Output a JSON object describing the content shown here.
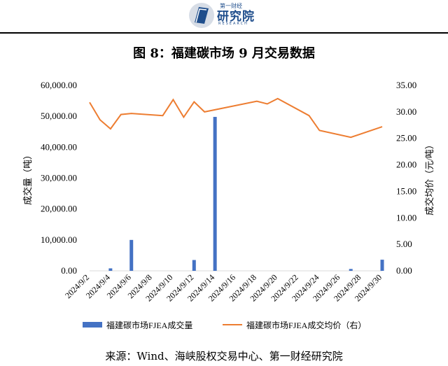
{
  "header": {
    "logo_small": "第一财经",
    "logo_cn": "研究院",
    "logo_en": "RESEARCH"
  },
  "title": "图 8：福建碳市场 9 月交易数据",
  "source": "来源：Wind、海峡股权交易中心、第一财经研究院",
  "colors": {
    "bar": "#4472c4",
    "line": "#ed7d31",
    "logo": "#1f4e8c"
  },
  "chart_data": {
    "type": "bar",
    "title": "",
    "x_tick_labels": [
      "2024/9/2",
      "2024/9/4",
      "2024/9/6",
      "2024/9/8",
      "2024/9/10",
      "2024/9/12",
      "2024/9/14",
      "2024/9/16",
      "2024/9/18",
      "2024/9/20",
      "2024/9/22",
      "2024/9/24",
      "2024/9/26",
      "2024/9/28",
      "2024/9/30"
    ],
    "x_start": "2024/9/2",
    "x_end": "2024/9/30",
    "y_left": {
      "label": "成交量（吨）",
      "lim": [
        0,
        60000
      ],
      "ticks": [
        "0.00",
        "10,000.00",
        "20,000.00",
        "30,000.00",
        "40,000.00",
        "50,000.00",
        "60,000.00"
      ]
    },
    "y_right": {
      "label": "成交均价（元/吨）",
      "lim": [
        0,
        35
      ],
      "ticks": [
        "0.00",
        "5.00",
        "10.00",
        "15.00",
        "20.00",
        "25.00",
        "30.00",
        "35.00"
      ]
    },
    "legend_position": "bottom",
    "series": [
      {
        "name": "福建碳市场FJEA成交量",
        "type": "bar",
        "axis": "left",
        "points": [
          {
            "date": "2024/9/4",
            "value": 800
          },
          {
            "date": "2024/9/6",
            "value": 10000
          },
          {
            "date": "2024/9/12",
            "value": 3500
          },
          {
            "date": "2024/9/14",
            "value": 49800
          },
          {
            "date": "2024/9/27",
            "value": 600
          },
          {
            "date": "2024/9/30",
            "value": 3600
          }
        ]
      },
      {
        "name": "福建碳市场FJEA成交均价（右）",
        "type": "line",
        "axis": "right",
        "points": [
          {
            "date": "2024/9/2",
            "value": 31.8
          },
          {
            "date": "2024/9/3",
            "value": 28.5
          },
          {
            "date": "2024/9/4",
            "value": 26.8
          },
          {
            "date": "2024/9/5",
            "value": 29.5
          },
          {
            "date": "2024/9/6",
            "value": 29.7
          },
          {
            "date": "2024/9/9",
            "value": 29.3
          },
          {
            "date": "2024/9/10",
            "value": 32.3
          },
          {
            "date": "2024/9/11",
            "value": 29.0
          },
          {
            "date": "2024/9/12",
            "value": 31.9
          },
          {
            "date": "2024/9/13",
            "value": 30.0
          },
          {
            "date": "2024/9/18",
            "value": 32.0
          },
          {
            "date": "2024/9/19",
            "value": 31.5
          },
          {
            "date": "2024/9/20",
            "value": 32.5
          },
          {
            "date": "2024/9/23",
            "value": 29.3
          },
          {
            "date": "2024/9/24",
            "value": 26.5
          },
          {
            "date": "2024/9/27",
            "value": 25.2
          },
          {
            "date": "2024/9/30",
            "value": 27.2
          }
        ]
      }
    ]
  }
}
